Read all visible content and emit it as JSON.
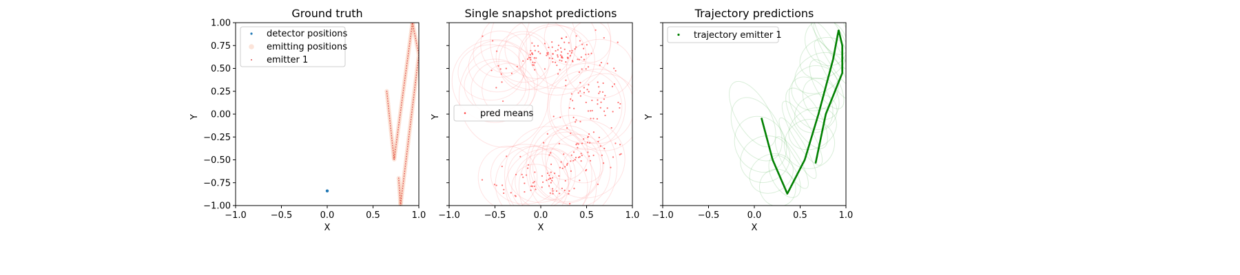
{
  "chart_data": [
    {
      "type": "scatter",
      "title": "Ground truth",
      "xlabel": "X",
      "ylabel": "Y",
      "xlim": [
        -1.0,
        1.0
      ],
      "ylim": [
        -1.0,
        1.0
      ],
      "xticks": [
        "−1.0",
        "−0.5",
        "0.0",
        "0.5",
        "1.0"
      ],
      "yticks": [
        "−1.00",
        "−0.75",
        "−0.50",
        "−0.25",
        "0.00",
        "0.25",
        "0.50",
        "0.75",
        "1.00"
      ],
      "legend_position": "upper-left",
      "series": [
        {
          "name": "detector positions",
          "color": "#1f77b4",
          "marker": "dot",
          "points": [
            [
              0.0,
              -0.84
            ]
          ]
        },
        {
          "name": "emitting positions",
          "color": "#f4a582",
          "marker": "circle-faint",
          "path": [
            [
              0.65,
              0.25
            ],
            [
              0.73,
              -0.5
            ],
            [
              0.93,
              1.0
            ],
            [
              0.95,
              0.9
            ],
            [
              1.0,
              0.65
            ],
            [
              0.8,
              -1.0
            ],
            [
              0.78,
              -0.7
            ]
          ]
        },
        {
          "name": "emitter 1",
          "color": "#d62728",
          "marker": "tiny",
          "path": [
            [
              0.65,
              0.25
            ],
            [
              0.73,
              -0.5
            ],
            [
              0.93,
              1.0
            ],
            [
              0.95,
              0.9
            ],
            [
              1.0,
              0.65
            ],
            [
              0.8,
              -1.0
            ],
            [
              0.78,
              -0.7
            ]
          ]
        }
      ]
    },
    {
      "type": "scatter",
      "title": "Single snapshot predictions",
      "xlabel": "X",
      "ylabel": "Y",
      "xlim": [
        -1.0,
        1.0
      ],
      "ylim": [
        -1.0,
        1.0
      ],
      "xticks": [
        "−1.0",
        "−0.5",
        "0.0",
        "0.5",
        "1.0"
      ],
      "legend_position": "center-left",
      "series": [
        {
          "name": "pred means",
          "color": "#ff4040",
          "marker": "dot-small"
        }
      ],
      "clusters": [
        {
          "cx": 0.15,
          "cy": 0.65,
          "sx": 0.28,
          "sy": 0.1,
          "n": 90
        },
        {
          "cx": 0.55,
          "cy": 0.15,
          "sx": 0.18,
          "sy": 0.25,
          "n": 80
        },
        {
          "cx": 0.45,
          "cy": -0.5,
          "sx": 0.2,
          "sy": 0.15,
          "n": 40
        },
        {
          "cx": -0.15,
          "cy": -0.7,
          "sx": 0.25,
          "sy": 0.12,
          "n": 35
        },
        {
          "cx": 0.15,
          "cy": -0.75,
          "sx": 0.15,
          "sy": 0.1,
          "n": 25
        },
        {
          "cx": -0.45,
          "cy": 0.4,
          "sx": 0.1,
          "sy": 0.2,
          "n": 10
        }
      ]
    },
    {
      "type": "line",
      "title": "Trajectory predictions",
      "xlabel": "X",
      "ylabel": "Y",
      "xlim": [
        -1.0,
        1.0
      ],
      "ylim": [
        -1.0,
        1.0
      ],
      "xticks": [
        "−1.0",
        "−0.5",
        "0.0",
        "0.5",
        "1.0"
      ],
      "legend_position": "upper-left",
      "series": [
        {
          "name": "trajectory emitter 1",
          "color": "#008000",
          "marker": "dot",
          "path": [
            [
              0.08,
              -0.05
            ],
            [
              0.2,
              -0.5
            ],
            [
              0.36,
              -0.87
            ],
            [
              0.55,
              -0.5
            ],
            [
              0.7,
              0.0
            ],
            [
              0.86,
              0.6
            ],
            [
              0.92,
              0.92
            ],
            [
              0.96,
              0.75
            ],
            [
              0.96,
              0.45
            ],
            [
              0.78,
              0.0
            ],
            [
              0.67,
              -0.53
            ]
          ]
        }
      ]
    }
  ]
}
